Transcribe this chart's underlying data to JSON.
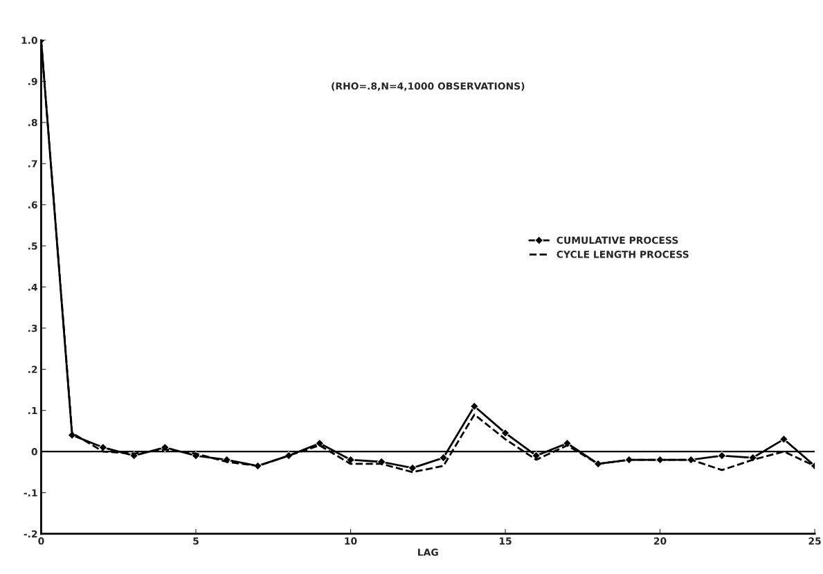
{
  "chart_data": {
    "type": "line",
    "subtitle": "(RHO=.8,N=4,1000 OBSERVATIONS)",
    "xlabel": "LAG",
    "x": [
      0,
      1,
      2,
      3,
      4,
      5,
      6,
      7,
      8,
      9,
      10,
      11,
      12,
      13,
      14,
      15,
      16,
      17,
      18,
      19,
      20,
      21,
      22,
      23,
      24,
      25
    ],
    "series": [
      {
        "name": "CUMULATIVE PROCESS",
        "color": "#000000",
        "marker": "diamond",
        "line_style": "solid",
        "values": [
          1.0,
          0.04,
          0.01,
          -0.01,
          0.01,
          -0.01,
          -0.02,
          -0.035,
          -0.01,
          0.02,
          -0.02,
          -0.025,
          -0.04,
          -0.015,
          0.11,
          0.045,
          -0.01,
          0.02,
          -0.03,
          -0.02,
          -0.02,
          -0.02,
          -0.01,
          -0.015,
          0.03,
          -0.035
        ]
      },
      {
        "name": "CYCLE LENGTH PROCESS",
        "color": "#000000",
        "marker": "none",
        "line_style": "dashed",
        "values": [
          1.0,
          0.045,
          0.0,
          -0.005,
          0.005,
          -0.005,
          -0.025,
          -0.035,
          -0.01,
          0.015,
          -0.03,
          -0.03,
          -0.05,
          -0.035,
          0.09,
          0.03,
          -0.02,
          0.015,
          -0.03,
          -0.02,
          -0.02,
          -0.02,
          -0.045,
          -0.02,
          0.0,
          -0.035
        ]
      }
    ],
    "xlim": [
      0,
      25
    ],
    "xticks": [
      0,
      5,
      10,
      15,
      20,
      25
    ],
    "ylim": [
      -0.2,
      1.0
    ],
    "yticks": [
      {
        "value": -0.2,
        "label": "-.2"
      },
      {
        "value": -0.1,
        "label": "-.1"
      },
      0,
      {
        "value": 0.1,
        "label": ".1"
      },
      {
        "value": 0.2,
        "label": ".2"
      },
      {
        "value": 0.3,
        "label": ".3"
      },
      {
        "value": 0.4,
        "label": ".4"
      },
      {
        "value": 0.5,
        "label": ".5"
      },
      {
        "value": 0.6,
        "label": ".6"
      },
      {
        "value": 0.7,
        "label": ".7"
      },
      {
        "value": 0.8,
        "label": ".8"
      },
      {
        "value": 0.9,
        "label": ".9"
      },
      {
        "value": 1.0,
        "label": "1.0"
      }
    ],
    "ref_lines": [
      {
        "axis": "y",
        "value": 0,
        "color": "#000000",
        "line_style": "solid"
      }
    ],
    "grid": false,
    "legend": "right"
  }
}
